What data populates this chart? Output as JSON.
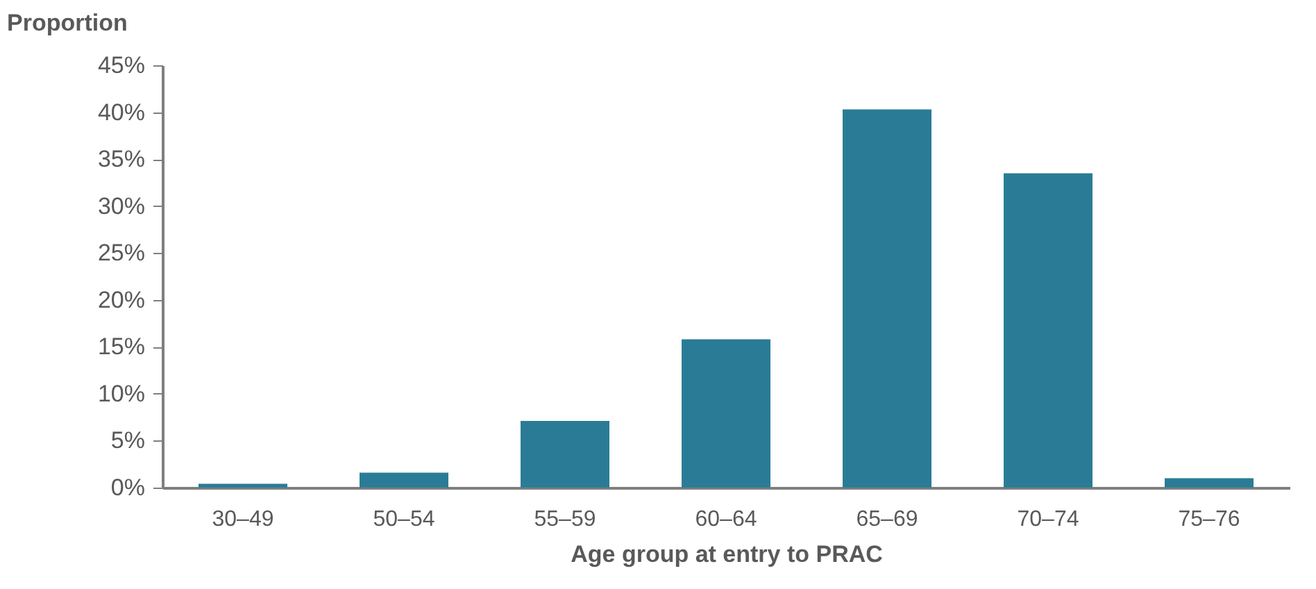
{
  "chart_data": {
    "type": "bar",
    "ylabel": "Proportion",
    "xlabel": "Age group at entry to PRAC",
    "categories": [
      "30–49",
      "50–54",
      "55–59",
      "60–64",
      "65–69",
      "70–74",
      "75–76"
    ],
    "values": [
      0.4,
      1.6,
      7.1,
      15.8,
      40.3,
      33.5,
      1.0
    ],
    "color": "#2a7c96",
    "ylim": [
      0,
      45
    ],
    "yticks": [
      {
        "value": 0,
        "label": "0%"
      },
      {
        "value": 5,
        "label": "5%"
      },
      {
        "value": 10,
        "label": "10%"
      },
      {
        "value": 15,
        "label": "15%"
      },
      {
        "value": 20,
        "label": "20%"
      },
      {
        "value": 25,
        "label": "25%"
      },
      {
        "value": 30,
        "label": "30%"
      },
      {
        "value": 35,
        "label": "35%"
      },
      {
        "value": 40,
        "label": "40%"
      },
      {
        "value": 45,
        "label": "45%"
      }
    ],
    "grid": false
  }
}
